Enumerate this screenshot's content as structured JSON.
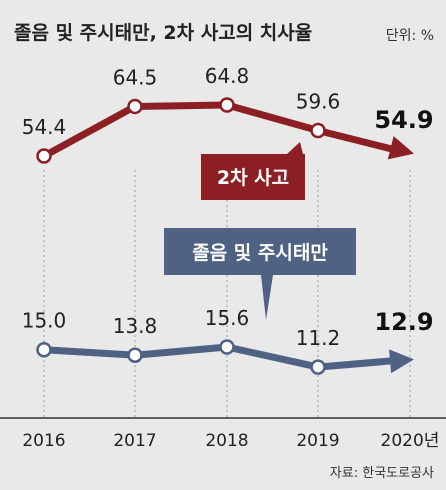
{
  "chart_data": {
    "type": "line",
    "title": "졸음 및 주시태만, 2차 사고의 치사율",
    "unit_label": "단위: %",
    "source": "자료: 한국도로공사",
    "categories": [
      "2016",
      "2017",
      "2018",
      "2019",
      "2020년"
    ],
    "series": [
      {
        "name": "2차 사고",
        "values": [
          54.4,
          64.5,
          64.8,
          59.6,
          54.9
        ],
        "labels": [
          "54.4",
          "64.5",
          "64.8",
          "59.6",
          "54.9"
        ],
        "color": "#8c1f24"
      },
      {
        "name": "졸음 및 주시태만",
        "values": [
          15.0,
          13.8,
          15.6,
          11.2,
          12.9
        ],
        "labels": [
          "15.0",
          "13.8",
          "15.6",
          "11.2",
          "12.9"
        ],
        "color": "#4f6283"
      }
    ],
    "grid": "vertical-dotted"
  }
}
